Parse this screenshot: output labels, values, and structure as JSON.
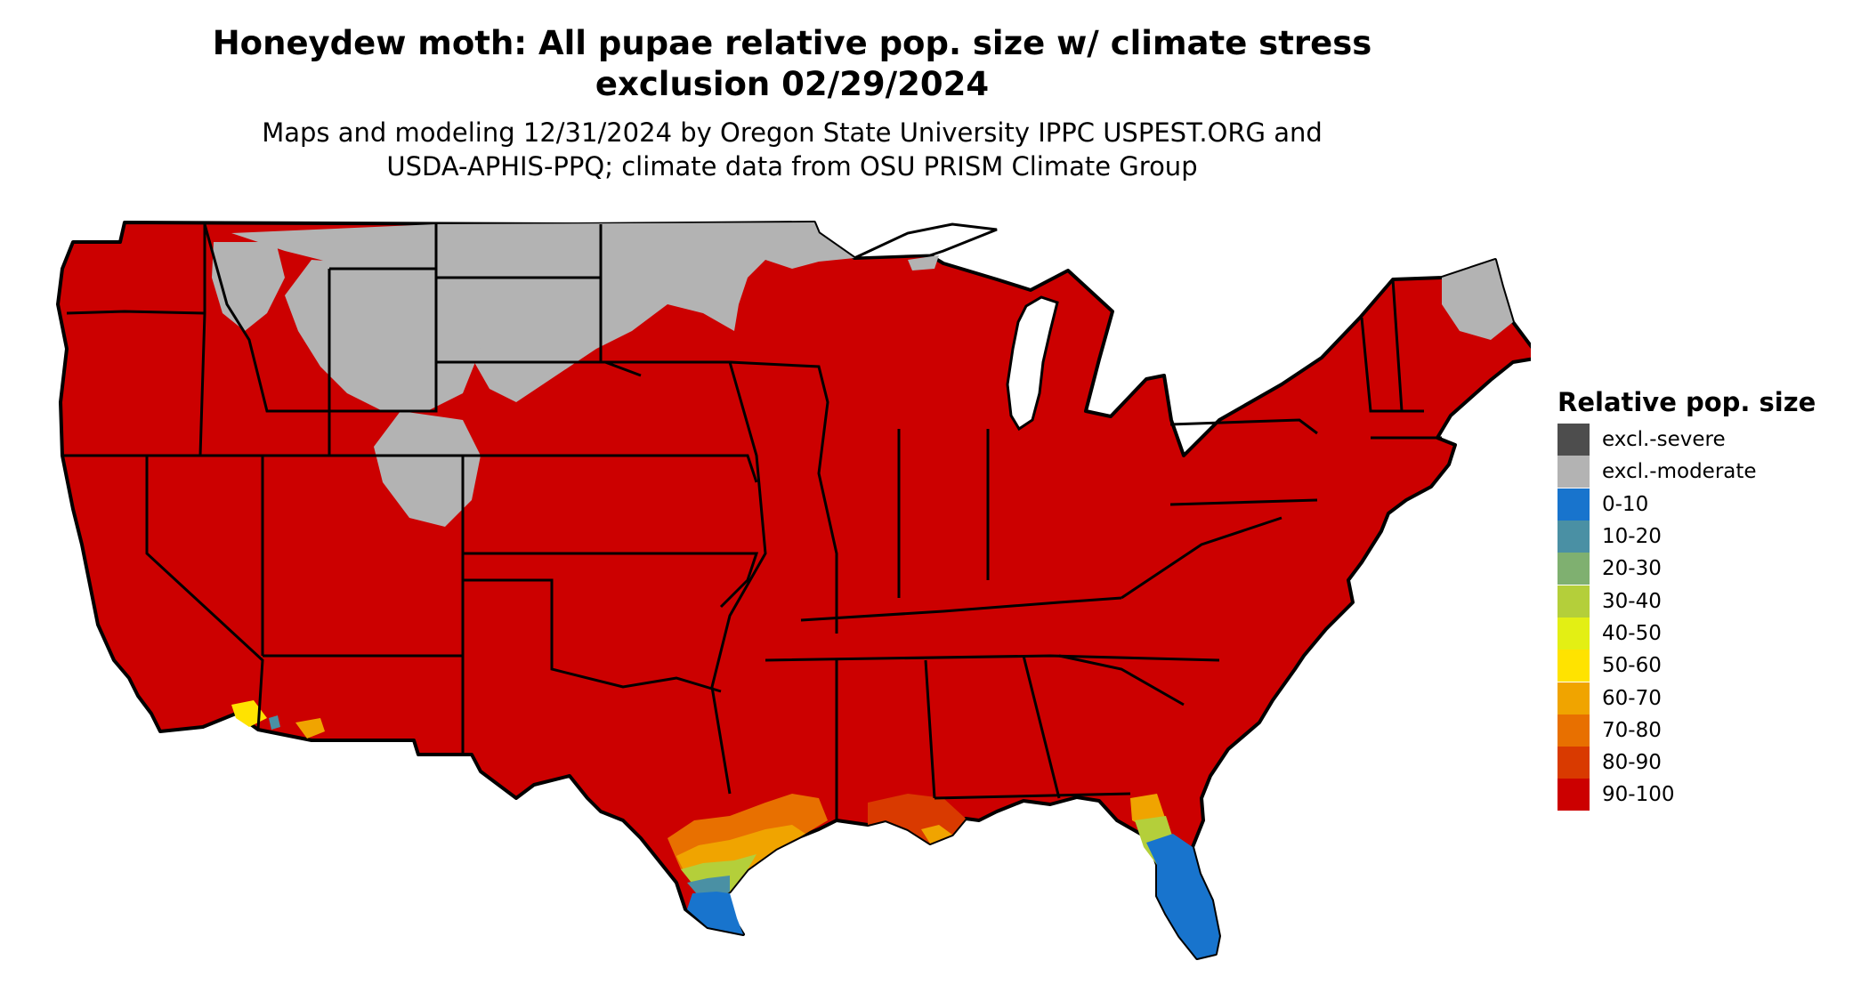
{
  "title": {
    "line1": "Honeydew moth: All pupae relative pop. size w/ climate stress",
    "line2": "exclusion 02/29/2024"
  },
  "subtitle": {
    "line1": "Maps and modeling 12/31/2024 by Oregon State University IPPC USPEST.ORG and",
    "line2": "USDA-APHIS-PPQ; climate data from OSU PRISM Climate Group"
  },
  "legend": {
    "title": "Relative pop. size",
    "items": [
      {
        "label": "excl.-severe",
        "color": "#4d4d4d"
      },
      {
        "label": "excl.-moderate",
        "color": "#b3b3b3"
      },
      {
        "label": "0-10",
        "color": "#1874cd"
      },
      {
        "label": "10-20",
        "color": "#4a90a4"
      },
      {
        "label": "20-30",
        "color": "#7fb070"
      },
      {
        "label": "30-40",
        "color": "#b4cf3a"
      },
      {
        "label": "40-50",
        "color": "#e3ef14"
      },
      {
        "label": "50-60",
        "color": "#ffe300"
      },
      {
        "label": "60-70",
        "color": "#f0a400"
      },
      {
        "label": "70-80",
        "color": "#e87000"
      },
      {
        "label": "80-90",
        "color": "#d93a00"
      },
      {
        "label": "90-100",
        "color": "#cc0000"
      }
    ]
  },
  "map_colors": {
    "base": "#cc0000",
    "excluded_moderate": "#b3b3b3",
    "border": "#000000"
  }
}
